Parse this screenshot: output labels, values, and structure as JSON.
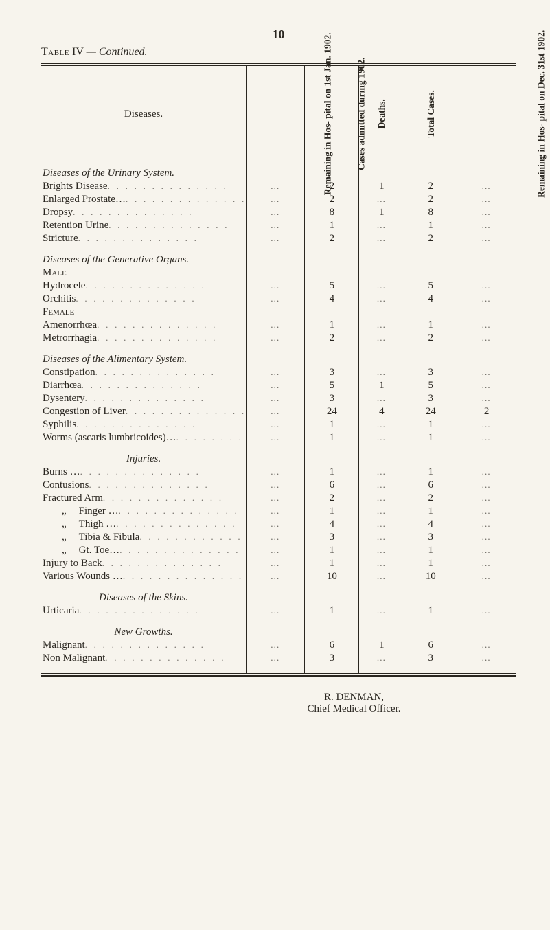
{
  "page_number": "10",
  "table_title_prefix": "Table",
  "table_title_num": "IV",
  "table_title_suffix": "— Continued.",
  "columns": {
    "diseases": "Diseases.",
    "remaining_jan": "Remaining in Hos-\npital on 1st Jan.\n1902.",
    "cases_admitted": "Cases admitted\nduring 1902.",
    "deaths": "Deaths.",
    "total_cases": "Total Cases.",
    "remaining_dec": "Remaining in Hos-\npital on Dec. 31st\n1902."
  },
  "ellipsis": "…",
  "sections": [
    {
      "heading_it": "Diseases of the Urinary System.",
      "rows": [
        {
          "label": "Brights Disease",
          "v": [
            "…",
            "2",
            "1",
            "2",
            "…"
          ]
        },
        {
          "label": "Enlarged Prostate…",
          "v": [
            "…",
            "2",
            "…",
            "2",
            "…"
          ]
        },
        {
          "label": "Dropsy",
          "v": [
            "…",
            "8",
            "1",
            "8",
            "…"
          ]
        },
        {
          "label": "Retention Urine",
          "v": [
            "…",
            "1",
            "…",
            "1",
            "…"
          ]
        },
        {
          "label": "Stricture",
          "v": [
            "…",
            "2",
            "…",
            "2",
            "…"
          ]
        }
      ]
    },
    {
      "heading_it": "Diseases of the Generative Organs.",
      "sub": [
        {
          "heading_sc": "Male",
          "rows": [
            {
              "label": "Hydrocele",
              "v": [
                "…",
                "5",
                "…",
                "5",
                "…"
              ]
            },
            {
              "label": "Orchitis",
              "v": [
                "…",
                "4",
                "…",
                "4",
                "…"
              ]
            }
          ]
        },
        {
          "heading_sc": "Female",
          "rows": [
            {
              "label": "Amenorrhœa",
              "v": [
                "…",
                "1",
                "…",
                "1",
                "…"
              ]
            },
            {
              "label": "Metrorrhagia",
              "v": [
                "…",
                "2",
                "…",
                "2",
                "…"
              ]
            }
          ]
        }
      ]
    },
    {
      "heading_it": "Diseases of the Alimentary System.",
      "rows": [
        {
          "label": "Constipation",
          "v": [
            "…",
            "3",
            "…",
            "3",
            "…"
          ]
        },
        {
          "label": "Diarrhœa",
          "v": [
            "…",
            "5",
            "1",
            "5",
            "…"
          ]
        },
        {
          "label": "Dysentery",
          "v": [
            "…",
            "3",
            "…",
            "3",
            "…"
          ]
        },
        {
          "label": "Congestion of Liver",
          "v": [
            "…",
            "24",
            "4",
            "24",
            "2"
          ]
        },
        {
          "label": "Syphilis",
          "v": [
            "…",
            "1",
            "…",
            "1",
            "…"
          ]
        },
        {
          "label": "Worms (ascaris lumbricoides)…",
          "v": [
            "…",
            "1",
            "…",
            "1",
            "…"
          ]
        }
      ]
    },
    {
      "heading_it_center": "Injuries.",
      "rows": [
        {
          "label": "Burns …",
          "v": [
            "…",
            "1",
            "…",
            "1",
            "…"
          ]
        },
        {
          "label": "Contusions",
          "v": [
            "…",
            "6",
            "…",
            "6",
            "…"
          ]
        },
        {
          "label": "Fractured Arm",
          "v": [
            "…",
            "2",
            "…",
            "2",
            "…"
          ]
        },
        {
          "label": "Finger …",
          "indent": true,
          "prefix": "„",
          "v": [
            "…",
            "1",
            "…",
            "1",
            "…"
          ]
        },
        {
          "label": "Thigh …",
          "indent": true,
          "prefix": "„",
          "v": [
            "…",
            "4",
            "…",
            "4",
            "…"
          ]
        },
        {
          "label": "Tibia & Fibula",
          "indent": true,
          "prefix": "„",
          "v": [
            "…",
            "3",
            "…",
            "3",
            "…"
          ]
        },
        {
          "label": "Gt. Toe…",
          "indent": true,
          "prefix": "„",
          "v": [
            "…",
            "1",
            "…",
            "1",
            "…"
          ]
        },
        {
          "label": "Injury to Back",
          "v": [
            "…",
            "1",
            "…",
            "1",
            "…"
          ]
        },
        {
          "label": "Various Wounds …",
          "v": [
            "…",
            "10",
            "…",
            "10",
            "…"
          ]
        }
      ]
    },
    {
      "heading_it_center": "Diseases of the Skins.",
      "rows": [
        {
          "label": "Urticaria",
          "v": [
            "…",
            "1",
            "…",
            "1",
            "…"
          ]
        }
      ]
    },
    {
      "heading_it_center": "New Growths.",
      "rows": [
        {
          "label": "Malignant",
          "v": [
            "…",
            "6",
            "1",
            "6",
            "…"
          ]
        },
        {
          "label": "Non Malignant",
          "v": [
            "…",
            "3",
            "…",
            "3",
            "…"
          ]
        }
      ]
    }
  ],
  "signature_line1": "R. DENMAN,",
  "signature_line2": "Chief Medical Officer."
}
